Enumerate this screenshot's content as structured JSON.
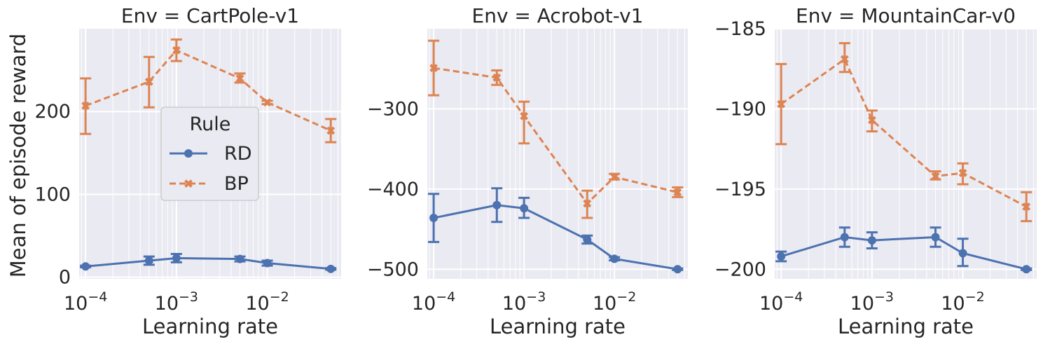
{
  "figure": {
    "ylabel": "Mean of episode reward",
    "xlabel": "Learning rate",
    "legend": {
      "title": "Rule",
      "entries": [
        {
          "name": "RD",
          "color": "#4c72b0",
          "marker": "circle",
          "dash": "solid"
        },
        {
          "name": "BP",
          "color": "#dd8452",
          "marker": "x",
          "dash": "dashed"
        }
      ],
      "placement": "center, first panel"
    }
  },
  "chart_data": [
    {
      "type": "line",
      "title": "Env = CartPole-v1",
      "xlabel": "Learning rate",
      "ylabel": "Mean of episode reward",
      "xscale": "log",
      "xlim": [
        8.5e-05,
        0.065
      ],
      "ylim": [
        -2,
        300
      ],
      "yticks": [
        0,
        100,
        200
      ],
      "yticklabels": [
        "0",
        "100",
        "200"
      ],
      "xticks": [
        0.0001,
        0.001,
        0.01
      ],
      "xticklabels": [
        "10^-4",
        "10^-3",
        "10^-2"
      ],
      "grid": true,
      "x": [
        0.0001,
        0.0005,
        0.001,
        0.005,
        0.01,
        0.05
      ],
      "series": [
        {
          "name": "RD",
          "values": [
            13,
            20,
            23,
            22,
            17,
            10
          ],
          "ci_low": [
            12,
            15,
            18,
            19,
            14,
            9
          ],
          "ci_high": [
            14,
            25,
            28,
            25,
            20,
            11
          ]
        },
        {
          "name": "BP",
          "values": [
            207,
            236,
            274,
            240,
            211,
            177
          ],
          "ci_low": [
            173,
            205,
            261,
            235,
            209,
            163
          ],
          "ci_high": [
            240,
            266,
            287,
            246,
            213,
            191
          ]
        }
      ]
    },
    {
      "type": "line",
      "title": "Env = Acrobot-v1",
      "xlabel": "Learning rate",
      "ylabel": "",
      "xscale": "log",
      "xlim": [
        8.5e-05,
        0.065
      ],
      "ylim": [
        -512,
        -200
      ],
      "yticks": [
        -500,
        -400,
        -300
      ],
      "yticklabels": [
        "−500",
        "−400",
        "−300"
      ],
      "xticks": [
        0.0001,
        0.001,
        0.01
      ],
      "xticklabels": [
        "10^-4",
        "10^-3",
        "10^-2"
      ],
      "grid": true,
      "x": [
        0.0001,
        0.0005,
        0.001,
        0.005,
        0.01,
        0.05
      ],
      "series": [
        {
          "name": "RD",
          "values": [
            -436,
            -420,
            -424,
            -463,
            -487,
            -500
          ],
          "ci_low": [
            -466,
            -441,
            -436,
            -468,
            -489,
            -501
          ],
          "ci_high": [
            -406,
            -399,
            -411,
            -458,
            -485,
            -499
          ]
        },
        {
          "name": "BP",
          "values": [
            -249,
            -261,
            -309,
            -418,
            -385,
            -404
          ],
          "ci_low": [
            -283,
            -270,
            -343,
            -436,
            -388,
            -410
          ],
          "ci_high": [
            -215,
            -252,
            -291,
            -402,
            -381,
            -398
          ]
        }
      ]
    },
    {
      "type": "line",
      "title": "Env = MountainCar-v0",
      "xlabel": "Learning rate",
      "ylabel": "",
      "xscale": "log",
      "xlim": [
        8.5e-05,
        0.065
      ],
      "ylim": [
        -200.6,
        -185
      ],
      "yticks": [
        -200,
        -195,
        -190,
        -185
      ],
      "yticklabels": [
        "−200",
        "−195",
        "−190",
        "−185"
      ],
      "xticks": [
        0.0001,
        0.001,
        0.01
      ],
      "xticklabels": [
        "10^-4",
        "10^-3",
        "10^-2"
      ],
      "grid": true,
      "x": [
        0.0001,
        0.0005,
        0.001,
        0.005,
        0.01,
        0.05
      ],
      "series": [
        {
          "name": "RD",
          "values": [
            -199.2,
            -198.0,
            -198.2,
            -198.0,
            -199.0,
            -200.0
          ],
          "ci_low": [
            -199.5,
            -198.6,
            -198.7,
            -198.6,
            -199.8,
            -200.05
          ],
          "ci_high": [
            -198.9,
            -197.4,
            -197.7,
            -197.4,
            -198.1,
            -199.95
          ]
        },
        {
          "name": "BP",
          "values": [
            -189.7,
            -186.9,
            -190.7,
            -194.2,
            -194.0,
            -196.1
          ],
          "ci_low": [
            -192.2,
            -187.7,
            -191.4,
            -194.4,
            -194.7,
            -197.0
          ],
          "ci_high": [
            -187.2,
            -185.9,
            -190.1,
            -193.9,
            -193.4,
            -195.2
          ]
        }
      ]
    }
  ]
}
